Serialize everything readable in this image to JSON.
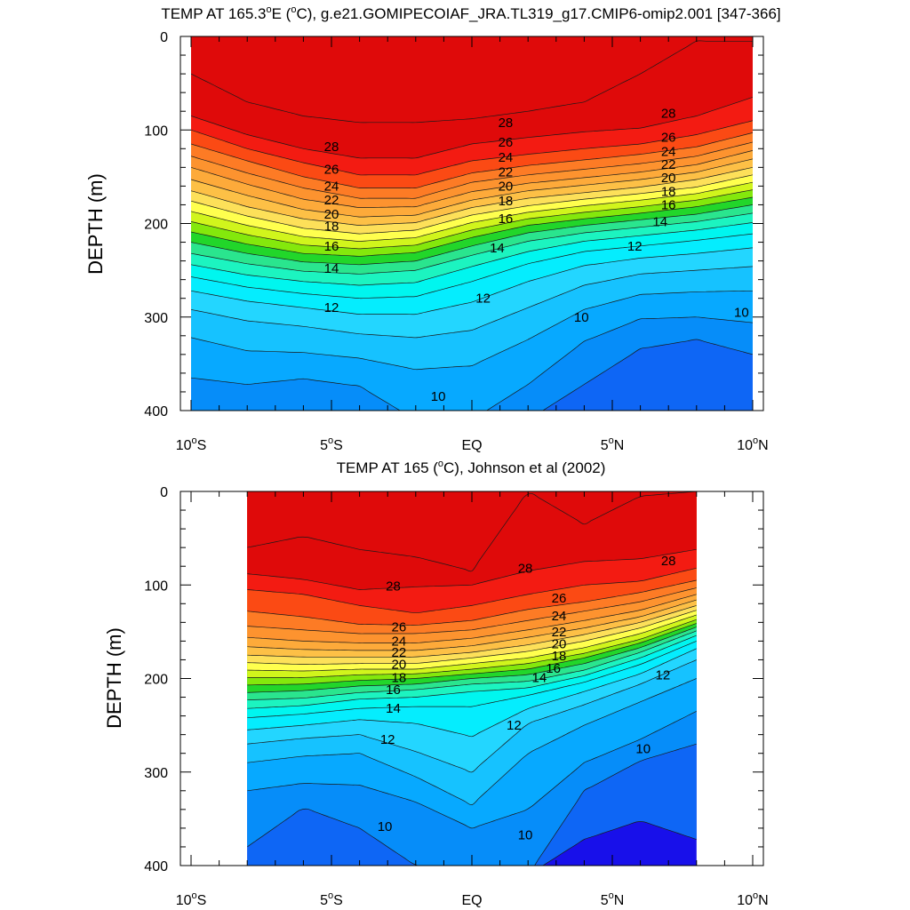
{
  "chart_data": [
    {
      "type": "contour",
      "title_pre": "TEMP AT 165.3",
      "title_sup": "o",
      "title_post": "E (",
      "title_sup2": "o",
      "title_end": "C), g.e21.GOMIPECOIAF_JRA.TL319_g17.CMIP6-omip2.001 [347-366]",
      "ylabel": "DEPTH (m)",
      "xlim": [
        -10,
        10
      ],
      "ylim": [
        0,
        400
      ],
      "y_reversed": true,
      "x_ticks": [
        {
          "v": -10,
          "num": "10",
          "hem": "S"
        },
        {
          "v": -5,
          "num": "5",
          "hem": "S"
        },
        {
          "v": 0,
          "num": "EQ",
          "hem": ""
        },
        {
          "v": 5,
          "num": "5",
          "hem": "N"
        },
        {
          "v": 10,
          "num": "10",
          "hem": "N"
        }
      ],
      "y_ticks": [
        0,
        100,
        200,
        300,
        400
      ],
      "data_x_range": [
        -10,
        10
      ],
      "contour_levels": [
        28,
        26,
        24,
        22,
        20,
        18,
        16,
        14,
        12,
        10
      ],
      "isotherms_x": [
        -10,
        -8,
        -6,
        -4,
        -2,
        0,
        2,
        4,
        6,
        8,
        10
      ],
      "isotherms": [
        {
          "t": 29,
          "depth": [
            40,
            70,
            85,
            92,
            92,
            88,
            80,
            70,
            40,
            5,
            5
          ]
        },
        {
          "t": 28,
          "depth": [
            85,
            105,
            120,
            130,
            130,
            115,
            108,
            102,
            98,
            85,
            65
          ]
        },
        {
          "t": 27,
          "depth": [
            100,
            120,
            135,
            148,
            148,
            133,
            126,
            120,
            115,
            105,
            90
          ]
        },
        {
          "t": 26,
          "depth": [
            115,
            133,
            150,
            162,
            162,
            146,
            138,
            132,
            126,
            118,
            103
          ]
        },
        {
          "t": 25,
          "depth": [
            128,
            146,
            162,
            173,
            173,
            156,
            148,
            142,
            136,
            128,
            113
          ]
        },
        {
          "t": 24,
          "depth": [
            140,
            158,
            174,
            183,
            182,
            166,
            157,
            151,
            145,
            137,
            122
          ]
        },
        {
          "t": 23,
          "depth": [
            153,
            170,
            185,
            193,
            191,
            175,
            165,
            159,
            153,
            145,
            131
          ]
        },
        {
          "t": 22,
          "depth": [
            165,
            182,
            195,
            202,
            199,
            183,
            173,
            167,
            161,
            153,
            140
          ]
        },
        {
          "t": 21,
          "depth": [
            176,
            192,
            205,
            211,
            207,
            191,
            181,
            174,
            168,
            161,
            148
          ]
        },
        {
          "t": 20,
          "depth": [
            187,
            202,
            214,
            219,
            215,
            199,
            188,
            181,
            175,
            168,
            156
          ]
        },
        {
          "t": 19,
          "depth": [
            198,
            212,
            223,
            227,
            223,
            207,
            195,
            188,
            182,
            175,
            164
          ]
        },
        {
          "t": 18,
          "depth": [
            209,
            222,
            232,
            235,
            231,
            215,
            202,
            195,
            189,
            182,
            172
          ]
        },
        {
          "t": 17,
          "depth": [
            220,
            232,
            241,
            244,
            240,
            224,
            210,
            202,
            196,
            190,
            180
          ]
        },
        {
          "t": 16,
          "depth": [
            232,
            243,
            251,
            254,
            250,
            234,
            219,
            210,
            204,
            198,
            189
          ]
        },
        {
          "t": 15,
          "depth": [
            244,
            255,
            262,
            266,
            263,
            246,
            230,
            219,
            213,
            207,
            199
          ]
        },
        {
          "t": 14,
          "depth": [
            257,
            268,
            275,
            280,
            278,
            262,
            243,
            230,
            224,
            218,
            211
          ]
        },
        {
          "t": 13,
          "depth": [
            272,
            283,
            290,
            297,
            297,
            284,
            262,
            245,
            237,
            232,
            226
          ]
        },
        {
          "t": 12,
          "depth": [
            292,
            304,
            310,
            318,
            322,
            314,
            290,
            266,
            254,
            250,
            246
          ]
        },
        {
          "t": 11,
          "depth": [
            322,
            336,
            338,
            344,
            356,
            352,
            324,
            292,
            276,
            273,
            272
          ]
        },
        {
          "t": 10,
          "depth": [
            365,
            372,
            366,
            374,
            410,
            410,
            372,
            326,
            302,
            300,
            306
          ]
        },
        {
          "t": 9.5,
          "depth": [
            410,
            410,
            410,
            410,
            410,
            410,
            410,
            372,
            334,
            324,
            340
          ]
        }
      ],
      "labels": [
        {
          "text": "28",
          "x": -5,
          "d": 118
        },
        {
          "text": "26",
          "x": -5,
          "d": 142
        },
        {
          "text": "24",
          "x": -5,
          "d": 160
        },
        {
          "text": "22",
          "x": -5,
          "d": 175
        },
        {
          "text": "20",
          "x": -5,
          "d": 190
        },
        {
          "text": "18",
          "x": -5,
          "d": 203
        },
        {
          "text": "16",
          "x": -5,
          "d": 224
        },
        {
          "text": "14",
          "x": -5,
          "d": 248
        },
        {
          "text": "12",
          "x": -5,
          "d": 290
        },
        {
          "text": "10",
          "x": -1.2,
          "d": 385
        },
        {
          "text": "28",
          "x": 1.2,
          "d": 92
        },
        {
          "text": "26",
          "x": 1.2,
          "d": 113
        },
        {
          "text": "24",
          "x": 1.2,
          "d": 129
        },
        {
          "text": "22",
          "x": 1.2,
          "d": 145
        },
        {
          "text": "20",
          "x": 1.2,
          "d": 160
        },
        {
          "text": "18",
          "x": 1.2,
          "d": 176
        },
        {
          "text": "16",
          "x": 1.2,
          "d": 195
        },
        {
          "text": "14",
          "x": 0.9,
          "d": 226
        },
        {
          "text": "12",
          "x": 0.4,
          "d": 280
        },
        {
          "text": "10",
          "x": 3.9,
          "d": 300
        },
        {
          "text": "28",
          "x": 7.0,
          "d": 82
        },
        {
          "text": "26",
          "x": 7.0,
          "d": 108
        },
        {
          "text": "24",
          "x": 7.0,
          "d": 123
        },
        {
          "text": "22",
          "x": 7.0,
          "d": 137
        },
        {
          "text": "20",
          "x": 7.0,
          "d": 151
        },
        {
          "text": "18",
          "x": 7.0,
          "d": 166
        },
        {
          "text": "16",
          "x": 7.0,
          "d": 180
        },
        {
          "text": "14",
          "x": 6.7,
          "d": 198
        },
        {
          "text": "12",
          "x": 5.8,
          "d": 224
        },
        {
          "text": "10",
          "x": 9.6,
          "d": 295
        }
      ]
    },
    {
      "type": "contour",
      "title_pre": "TEMP AT 165 (",
      "title_sup": "o",
      "title_post": "C), Johnson et al (2002)",
      "title_sup2": "",
      "title_end": "",
      "ylabel": "DEPTH (m)",
      "xlim": [
        -10,
        10
      ],
      "ylim": [
        0,
        400
      ],
      "y_reversed": true,
      "x_ticks": [
        {
          "v": -10,
          "num": "10",
          "hem": "S"
        },
        {
          "v": -5,
          "num": "5",
          "hem": "S"
        },
        {
          "v": 0,
          "num": "EQ",
          "hem": ""
        },
        {
          "v": 5,
          "num": "5",
          "hem": "N"
        },
        {
          "v": 10,
          "num": "10",
          "hem": "N"
        }
      ],
      "y_ticks": [
        0,
        100,
        200,
        300,
        400
      ],
      "data_x_range": [
        -8,
        8
      ],
      "contour_levels": [
        28,
        26,
        24,
        22,
        20,
        18,
        16,
        14,
        12,
        10
      ],
      "isotherms_x": [
        -8,
        -6,
        -4,
        -2,
        0,
        2,
        4,
        6,
        8
      ],
      "isotherms": [
        {
          "t": 29,
          "depth": [
            60,
            48,
            62,
            70,
            85,
            0,
            35,
            5,
            0
          ]
        },
        {
          "t": 28,
          "depth": [
            88,
            94,
            105,
            102,
            100,
            85,
            75,
            72,
            62
          ]
        },
        {
          "t": 27,
          "depth": [
            105,
            110,
            122,
            130,
            122,
            110,
            100,
            96,
            82
          ]
        },
        {
          "t": 26,
          "depth": [
            128,
            134,
            142,
            143,
            138,
            126,
            118,
            108,
            95
          ]
        },
        {
          "t": 25,
          "depth": [
            144,
            148,
            152,
            152,
            148,
            138,
            128,
            118,
            103
          ]
        },
        {
          "t": 24,
          "depth": [
            156,
            160,
            162,
            162,
            157,
            148,
            138,
            127,
            110
          ]
        },
        {
          "t": 23,
          "depth": [
            166,
            169,
            170,
            170,
            165,
            156,
            146,
            134,
            116
          ]
        },
        {
          "t": 22,
          "depth": [
            175,
            177,
            177,
            177,
            172,
            164,
            153,
            140,
            122
          ]
        },
        {
          "t": 21,
          "depth": [
            183,
            185,
            184,
            184,
            178,
            171,
            160,
            146,
            127
          ]
        },
        {
          "t": 20,
          "depth": [
            191,
            192,
            190,
            190,
            184,
            178,
            167,
            152,
            132
          ]
        },
        {
          "t": 19,
          "depth": [
            199,
            199,
            196,
            195,
            190,
            184,
            173,
            158,
            137
          ]
        },
        {
          "t": 18,
          "depth": [
            207,
            206,
            202,
            200,
            195,
            190,
            178,
            162,
            141
          ]
        },
        {
          "t": 17,
          "depth": [
            215,
            213,
            208,
            206,
            200,
            196,
            184,
            167,
            145
          ]
        },
        {
          "t": 16,
          "depth": [
            223,
            221,
            215,
            212,
            206,
            203,
            191,
            172,
            149
          ]
        },
        {
          "t": 15,
          "depth": [
            232,
            229,
            222,
            220,
            214,
            210,
            197,
            178,
            154
          ]
        },
        {
          "t": 14,
          "depth": [
            242,
            238,
            232,
            230,
            230,
            218,
            204,
            185,
            160
          ]
        },
        {
          "t": 13,
          "depth": [
            255,
            250,
            244,
            248,
            262,
            232,
            214,
            195,
            168
          ]
        },
        {
          "t": 12,
          "depth": [
            270,
            264,
            260,
            278,
            300,
            248,
            228,
            206,
            180
          ]
        },
        {
          "t": 11,
          "depth": [
            290,
            283,
            280,
            305,
            335,
            280,
            250,
            225,
            200
          ]
        },
        {
          "t": 10,
          "depth": [
            320,
            312,
            314,
            332,
            360,
            340,
            290,
            265,
            235
          ]
        },
        {
          "t": 9,
          "depth": [
            380,
            338,
            360,
            400,
            410,
            410,
            320,
            288,
            270
          ]
        },
        {
          "t": 8,
          "depth": [
            410,
            410,
            410,
            410,
            410,
            410,
            372,
            352,
            372
          ]
        }
      ],
      "labels": [
        {
          "text": "28",
          "x": -2.8,
          "d": 101
        },
        {
          "text": "26",
          "x": -2.6,
          "d": 145
        },
        {
          "text": "24",
          "x": -2.6,
          "d": 160
        },
        {
          "text": "22",
          "x": -2.6,
          "d": 172
        },
        {
          "text": "20",
          "x": -2.6,
          "d": 185
        },
        {
          "text": "18",
          "x": -2.6,
          "d": 199
        },
        {
          "text": "16",
          "x": -2.8,
          "d": 212
        },
        {
          "text": "14",
          "x": -2.8,
          "d": 232
        },
        {
          "text": "12",
          "x": -3.0,
          "d": 265
        },
        {
          "text": "10",
          "x": -3.1,
          "d": 358
        },
        {
          "text": "28",
          "x": 1.9,
          "d": 82
        },
        {
          "text": "26",
          "x": 3.1,
          "d": 114
        },
        {
          "text": "24",
          "x": 3.1,
          "d": 133
        },
        {
          "text": "22",
          "x": 3.1,
          "d": 150
        },
        {
          "text": "20",
          "x": 3.1,
          "d": 163
        },
        {
          "text": "18",
          "x": 3.1,
          "d": 176
        },
        {
          "text": "16",
          "x": 2.9,
          "d": 189
        },
        {
          "text": "14",
          "x": 2.4,
          "d": 199
        },
        {
          "text": "12",
          "x": 1.5,
          "d": 250
        },
        {
          "text": "10",
          "x": 1.9,
          "d": 367
        },
        {
          "text": "28",
          "x": 7.0,
          "d": 74
        },
        {
          "text": "12",
          "x": 6.8,
          "d": 196
        },
        {
          "text": "10",
          "x": 6.1,
          "d": 275
        }
      ]
    }
  ],
  "colors": {
    "t29": "#df0a0a",
    "t28": "#f31b12",
    "t27": "#fb4a14",
    "t26": "#fd7b25",
    "t25": "#fd932f",
    "t24": "#fdaa3a",
    "t23": "#fdc046",
    "t22": "#fde059",
    "t21": "#ffff4e",
    "t20": "#d1f51c",
    "t19": "#84e80c",
    "t18": "#22d62a",
    "t17": "#2ae58e",
    "t16": "#1cf4c0",
    "t15": "#00f6ef",
    "t14": "#05edfe",
    "t13": "#23d6ff",
    "t12": "#16c2ff",
    "t11": "#07a9ff",
    "t10": "#068df9",
    "t9": "#0e66f5",
    "t8": "#123af8",
    "t7": "#1810ea"
  }
}
